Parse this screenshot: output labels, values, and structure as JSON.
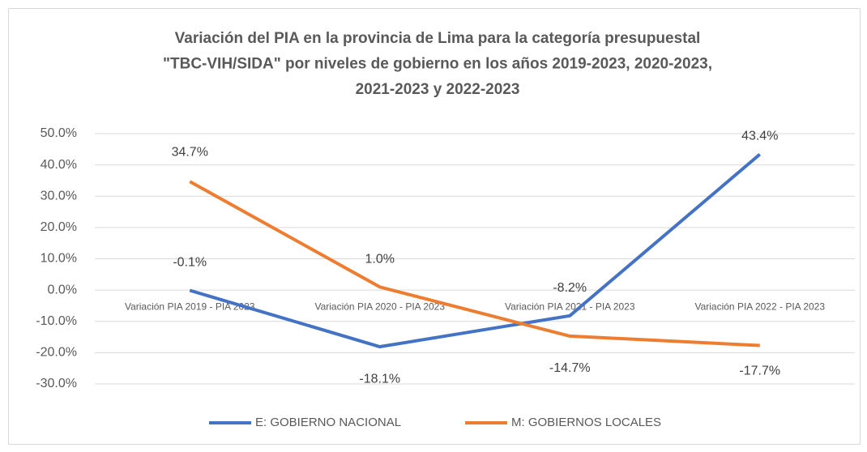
{
  "chart_data": {
    "type": "line",
    "title": [
      "Variación del PIA en la provincia de Lima para la categoría presupuestal",
      "\"TBC-VIH/SIDA\" por niveles de gobierno en los años 2019-2023, 2020-2023,",
      "2021-2023 y 2022-2023"
    ],
    "categories": [
      "Variación PIA 2019 - PIA 2023",
      "Variación PIA 2020 - PIA 2023",
      "Variación PIA 2021 - PIA 2023",
      "Variación PIA 2022 - PIA 2023"
    ],
    "series": [
      {
        "name": "E: GOBIERNO NACIONAL",
        "color": "#4472c4",
        "values": [
          -0.1,
          -18.1,
          -8.2,
          43.4
        ],
        "value_labels": [
          "-0.1%",
          "-18.1%",
          "-8.2%",
          "43.4%"
        ]
      },
      {
        "name": "M: GOBIERNOS LOCALES",
        "color": "#ed7d31",
        "values": [
          34.7,
          1.0,
          -14.7,
          -17.7
        ],
        "value_labels": [
          "34.7%",
          "1.0%",
          "-14.7%",
          "-17.7%"
        ]
      }
    ],
    "ylim": [
      -30,
      50
    ],
    "yticks": [
      {
        "value": -30,
        "label": "-30.0%"
      },
      {
        "value": -20,
        "label": "-20.0%"
      },
      {
        "value": -10,
        "label": "-10.0%"
      },
      {
        "value": 0,
        "label": "0.0%"
      },
      {
        "value": 10,
        "label": "10.0%"
      },
      {
        "value": 20,
        "label": "20.0%"
      },
      {
        "value": 30,
        "label": "30.0%"
      },
      {
        "value": 40,
        "label": "40.0%"
      },
      {
        "value": 50,
        "label": "50.0%"
      }
    ],
    "grid": true,
    "legend": "bottom"
  }
}
